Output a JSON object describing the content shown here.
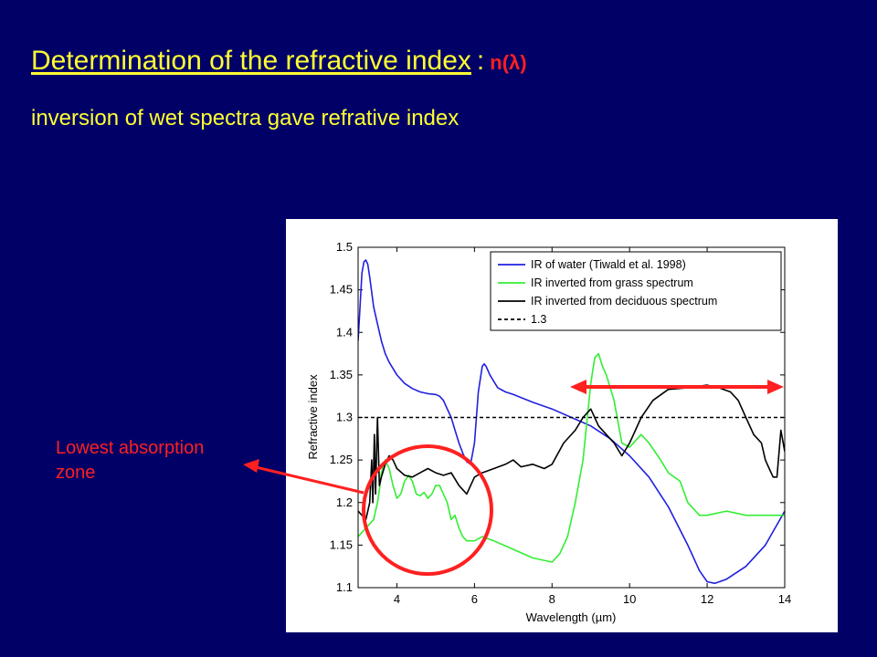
{
  "slide": {
    "title": "Determination of the refractive index",
    "title_separator": ":",
    "title_symbol": "n(λ)",
    "subtitle": "inversion of wet spectra gave refrative index",
    "callout_line1": "Lowest absorption",
    "callout_line2": "zone"
  },
  "colors": {
    "background": "#000066",
    "title": "#ffff33",
    "annotation": "#ff2020"
  },
  "chart_data": {
    "type": "line",
    "xlabel": "Wavelength (µm)",
    "ylabel": "Refractive index",
    "xlim": [
      3,
      14
    ],
    "ylim": [
      1.1,
      1.5
    ],
    "xticks": [
      4,
      6,
      8,
      10,
      12,
      14
    ],
    "yticks": [
      1.1,
      1.15,
      1.2,
      1.25,
      1.3,
      1.35,
      1.4,
      1.45,
      1.5
    ],
    "grid": false,
    "legend_position": "top-right",
    "series": [
      {
        "name": "IR of water (Tiwald et al. 1998)",
        "color": "#2020e0",
        "dash": "solid",
        "points": [
          [
            3.0,
            1.39
          ],
          [
            3.05,
            1.43
          ],
          [
            3.1,
            1.47
          ],
          [
            3.15,
            1.483
          ],
          [
            3.2,
            1.485
          ],
          [
            3.25,
            1.48
          ],
          [
            3.3,
            1.465
          ],
          [
            3.4,
            1.43
          ],
          [
            3.5,
            1.41
          ],
          [
            3.6,
            1.39
          ],
          [
            3.7,
            1.375
          ],
          [
            3.8,
            1.365
          ],
          [
            4.0,
            1.35
          ],
          [
            4.2,
            1.34
          ],
          [
            4.4,
            1.334
          ],
          [
            4.6,
            1.33
          ],
          [
            4.8,
            1.328
          ],
          [
            5.0,
            1.327
          ],
          [
            5.1,
            1.325
          ],
          [
            5.2,
            1.32
          ],
          [
            5.3,
            1.31
          ],
          [
            5.4,
            1.3
          ],
          [
            5.5,
            1.285
          ],
          [
            5.6,
            1.27
          ],
          [
            5.7,
            1.258
          ],
          [
            5.8,
            1.248
          ],
          [
            5.9,
            1.245
          ],
          [
            6.0,
            1.27
          ],
          [
            6.1,
            1.33
          ],
          [
            6.2,
            1.36
          ],
          [
            6.25,
            1.363
          ],
          [
            6.3,
            1.36
          ],
          [
            6.4,
            1.35
          ],
          [
            6.6,
            1.335
          ],
          [
            6.8,
            1.33
          ],
          [
            7.0,
            1.327
          ],
          [
            7.5,
            1.318
          ],
          [
            8.0,
            1.31
          ],
          [
            8.5,
            1.3
          ],
          [
            9.0,
            1.29
          ],
          [
            9.5,
            1.275
          ],
          [
            10.0,
            1.255
          ],
          [
            10.5,
            1.23
          ],
          [
            11.0,
            1.195
          ],
          [
            11.5,
            1.15
          ],
          [
            11.8,
            1.12
          ],
          [
            12.0,
            1.107
          ],
          [
            12.2,
            1.105
          ],
          [
            12.5,
            1.11
          ],
          [
            13.0,
            1.125
          ],
          [
            13.5,
            1.15
          ],
          [
            14.0,
            1.19
          ]
        ]
      },
      {
        "name": "IR inverted from grass spectrum",
        "color": "#33ee33",
        "dash": "solid",
        "points": [
          [
            3.0,
            1.16
          ],
          [
            3.2,
            1.17
          ],
          [
            3.4,
            1.18
          ],
          [
            3.5,
            1.2
          ],
          [
            3.55,
            1.215
          ],
          [
            3.6,
            1.235
          ],
          [
            3.7,
            1.25
          ],
          [
            3.8,
            1.24
          ],
          [
            3.9,
            1.22
          ],
          [
            4.0,
            1.205
          ],
          [
            4.1,
            1.21
          ],
          [
            4.2,
            1.225
          ],
          [
            4.3,
            1.232
          ],
          [
            4.4,
            1.225
          ],
          [
            4.5,
            1.21
          ],
          [
            4.6,
            1.208
          ],
          [
            4.7,
            1.212
          ],
          [
            4.8,
            1.205
          ],
          [
            4.9,
            1.21
          ],
          [
            5.0,
            1.22
          ],
          [
            5.1,
            1.22
          ],
          [
            5.2,
            1.21
          ],
          [
            5.3,
            1.2
          ],
          [
            5.4,
            1.18
          ],
          [
            5.5,
            1.185
          ],
          [
            5.6,
            1.17
          ],
          [
            5.7,
            1.16
          ],
          [
            5.8,
            1.155
          ],
          [
            6.0,
            1.155
          ],
          [
            6.2,
            1.16
          ],
          [
            6.5,
            1.155
          ],
          [
            7.0,
            1.145
          ],
          [
            7.5,
            1.135
          ],
          [
            8.0,
            1.13
          ],
          [
            8.2,
            1.14
          ],
          [
            8.4,
            1.16
          ],
          [
            8.6,
            1.2
          ],
          [
            8.8,
            1.25
          ],
          [
            9.0,
            1.34
          ],
          [
            9.1,
            1.37
          ],
          [
            9.2,
            1.375
          ],
          [
            9.3,
            1.36
          ],
          [
            9.4,
            1.35
          ],
          [
            9.6,
            1.32
          ],
          [
            9.8,
            1.27
          ],
          [
            10.0,
            1.265
          ],
          [
            10.3,
            1.28
          ],
          [
            10.5,
            1.27
          ],
          [
            10.8,
            1.25
          ],
          [
            11.0,
            1.235
          ],
          [
            11.3,
            1.225
          ],
          [
            11.5,
            1.2
          ],
          [
            11.8,
            1.185
          ],
          [
            12.0,
            1.185
          ],
          [
            12.5,
            1.19
          ],
          [
            13.0,
            1.185
          ],
          [
            13.5,
            1.185
          ],
          [
            14.0,
            1.185
          ]
        ]
      },
      {
        "name": "IR inverted from deciduous spectrum",
        "color": "#000000",
        "dash": "solid",
        "points": [
          [
            3.0,
            1.19
          ],
          [
            3.1,
            1.185
          ],
          [
            3.2,
            1.18
          ],
          [
            3.3,
            1.2
          ],
          [
            3.35,
            1.25
          ],
          [
            3.38,
            1.2
          ],
          [
            3.42,
            1.28
          ],
          [
            3.45,
            1.21
          ],
          [
            3.5,
            1.3
          ],
          [
            3.55,
            1.22
          ],
          [
            3.6,
            1.23
          ],
          [
            3.7,
            1.245
          ],
          [
            3.8,
            1.255
          ],
          [
            3.9,
            1.25
          ],
          [
            4.0,
            1.24
          ],
          [
            4.2,
            1.232
          ],
          [
            4.4,
            1.23
          ],
          [
            4.6,
            1.235
          ],
          [
            4.8,
            1.24
          ],
          [
            5.0,
            1.235
          ],
          [
            5.2,
            1.232
          ],
          [
            5.4,
            1.235
          ],
          [
            5.6,
            1.22
          ],
          [
            5.8,
            1.21
          ],
          [
            6.0,
            1.23
          ],
          [
            6.2,
            1.235
          ],
          [
            6.5,
            1.24
          ],
          [
            6.8,
            1.245
          ],
          [
            7.0,
            1.25
          ],
          [
            7.2,
            1.242
          ],
          [
            7.5,
            1.245
          ],
          [
            7.8,
            1.24
          ],
          [
            8.0,
            1.245
          ],
          [
            8.3,
            1.27
          ],
          [
            8.6,
            1.285
          ],
          [
            8.8,
            1.3
          ],
          [
            9.0,
            1.31
          ],
          [
            9.2,
            1.29
          ],
          [
            9.4,
            1.28
          ],
          [
            9.6,
            1.27
          ],
          [
            9.8,
            1.255
          ],
          [
            10.0,
            1.27
          ],
          [
            10.3,
            1.3
          ],
          [
            10.6,
            1.32
          ],
          [
            11.0,
            1.333
          ],
          [
            11.5,
            1.335
          ],
          [
            12.0,
            1.338
          ],
          [
            12.3,
            1.335
          ],
          [
            12.6,
            1.33
          ],
          [
            12.8,
            1.32
          ],
          [
            13.0,
            1.3
          ],
          [
            13.2,
            1.28
          ],
          [
            13.4,
            1.27
          ],
          [
            13.5,
            1.25
          ],
          [
            13.6,
            1.24
          ],
          [
            13.7,
            1.23
          ],
          [
            13.8,
            1.23
          ],
          [
            13.9,
            1.285
          ],
          [
            14.0,
            1.26
          ]
        ]
      },
      {
        "name": "1.3",
        "color": "#000000",
        "dash": "dashed",
        "points": [
          [
            3.0,
            1.3
          ],
          [
            14.0,
            1.3
          ]
        ]
      }
    ]
  }
}
